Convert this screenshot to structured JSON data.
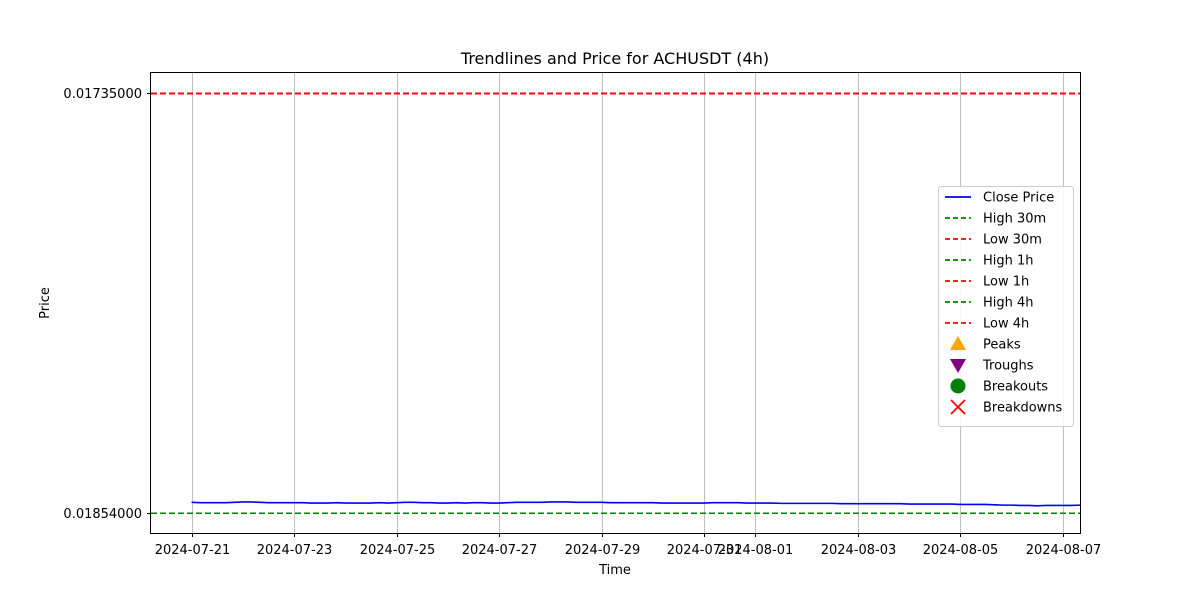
{
  "chart_data": {
    "type": "line",
    "title": "Trendlines and Price for ACHUSDT (4h)",
    "xlabel": "Time",
    "ylabel": "Price",
    "grid": "x-only",
    "legend_placement": "center-right",
    "x_ticks": [
      "2024-07-21",
      "2024-07-23",
      "2024-07-25",
      "2024-07-27",
      "2024-07-29",
      "2024-07-31",
      "2024-08-01",
      "2024-08-03",
      "2024-08-05",
      "2024-08-07"
    ],
    "y_ticks": [
      "0.01735000",
      "0.01854000"
    ],
    "y_ticks_values": [
      0.01735,
      0.01854
    ],
    "x_range": [
      "2024-07-20T05:00",
      "2024-08-07T08:00"
    ],
    "y_range_top_to_bottom": [
      0.017292,
      0.018596
    ],
    "series": [
      {
        "name": "Close Price",
        "color": "#0000ff",
        "style": "solid",
        "x_start": "2024-07-21T00:00",
        "step_hours": 4,
        "values": [
          0.018509,
          0.01851,
          0.01851,
          0.01851,
          0.01851,
          0.018509,
          0.018508,
          0.018508,
          0.018509,
          0.01851,
          0.01851,
          0.01851,
          0.01851,
          0.01851,
          0.018511,
          0.018511,
          0.018511,
          0.01851,
          0.018511,
          0.018511,
          0.018511,
          0.018511,
          0.01851,
          0.018511,
          0.01851,
          0.018509,
          0.018509,
          0.01851,
          0.01851,
          0.018511,
          0.018511,
          0.01851,
          0.018511,
          0.01851,
          0.01851,
          0.018511,
          0.018511,
          0.01851,
          0.018509,
          0.018509,
          0.018509,
          0.018509,
          0.018508,
          0.018508,
          0.018508,
          0.018509,
          0.018509,
          0.018509,
          0.018509,
          0.01851,
          0.01851,
          0.01851,
          0.01851,
          0.01851,
          0.01851,
          0.018511,
          0.018511,
          0.018511,
          0.018511,
          0.018511,
          0.018511,
          0.01851,
          0.01851,
          0.01851,
          0.01851,
          0.018511,
          0.018511,
          0.018511,
          0.018511,
          0.018512,
          0.018512,
          0.018512,
          0.018512,
          0.018512,
          0.018512,
          0.018512,
          0.018513,
          0.018513,
          0.018513,
          0.018513,
          0.018513,
          0.018513,
          0.018513,
          0.018513,
          0.018514,
          0.018514,
          0.018514,
          0.018514,
          0.018514,
          0.018514,
          0.018515,
          0.018515,
          0.018515,
          0.018515,
          0.018516,
          0.018517,
          0.018517,
          0.018518,
          0.018518,
          0.018519,
          0.018518,
          0.018518,
          0.018518,
          0.018518,
          0.018517
        ]
      },
      {
        "name": "High 30m",
        "color": "#008000",
        "style": "dashed",
        "y": 0.01854
      },
      {
        "name": "Low 30m",
        "color": "#ff0000",
        "style": "dashed",
        "y": 0.01735
      },
      {
        "name": "High 1h",
        "color": "#008000",
        "style": "dashed",
        "y": 0.01854
      },
      {
        "name": "Low 1h",
        "color": "#ff0000",
        "style": "dashed",
        "y": 0.01735
      },
      {
        "name": "High 4h",
        "color": "#008000",
        "style": "dashed",
        "y": 0.01854
      },
      {
        "name": "Low 4h",
        "color": "#ff0000",
        "style": "dashed",
        "y": 0.01735
      }
    ],
    "legend": [
      {
        "label": "Close Price",
        "kind": "line",
        "color": "#0000ff"
      },
      {
        "label": "High 30m",
        "kind": "dashed",
        "color": "#008000"
      },
      {
        "label": "Low 30m",
        "kind": "dashed",
        "color": "#ff0000"
      },
      {
        "label": "High 1h",
        "kind": "dashed",
        "color": "#008000"
      },
      {
        "label": "Low 1h",
        "kind": "dashed",
        "color": "#ff0000"
      },
      {
        "label": "High 4h",
        "kind": "dashed",
        "color": "#008000"
      },
      {
        "label": "Low 4h",
        "kind": "dashed",
        "color": "#ff0000"
      },
      {
        "label": "Peaks",
        "kind": "triangle-up",
        "color": "#ffa500"
      },
      {
        "label": "Troughs",
        "kind": "triangle-down",
        "color": "#800080"
      },
      {
        "label": "Breakouts",
        "kind": "circle",
        "color": "#008000"
      },
      {
        "label": "Breakdowns",
        "kind": "x",
        "color": "#ff0000"
      }
    ]
  }
}
